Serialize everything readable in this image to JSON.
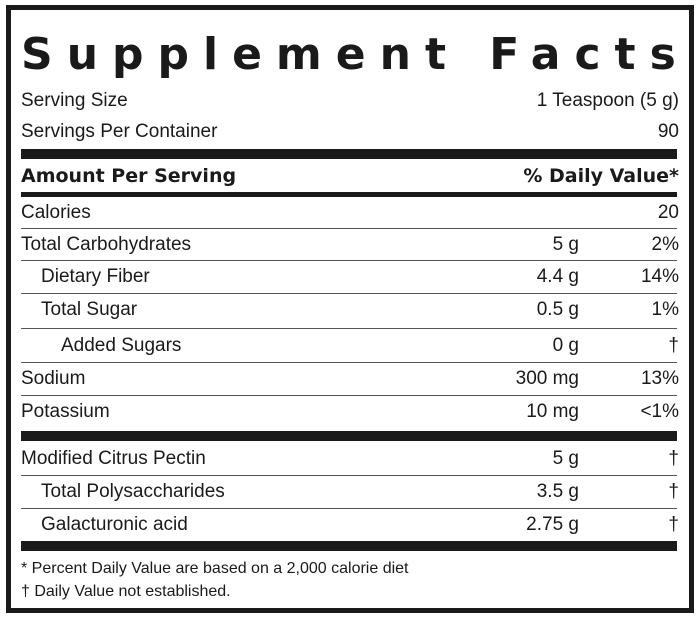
{
  "title": "Supplement Facts",
  "serving": {
    "size_label": "Serving Size",
    "size_value": "1 Teaspoon (5 g)",
    "per_container_label": "Servings Per Container",
    "per_container_value": "90"
  },
  "header": {
    "amount": "Amount Per Serving",
    "dv": "% Daily Value*"
  },
  "nutrients": [
    {
      "name": "Calories",
      "amount": "",
      "dv": "20"
    },
    {
      "name": "Total Carbohydrates",
      "amount": "5 g",
      "dv": "2%"
    },
    {
      "name": "Dietary Fiber",
      "amount": "4.4 g",
      "dv": "14%"
    },
    {
      "name": "Total Sugar",
      "amount": "0.5 g",
      "dv": "1%"
    },
    {
      "name": "Added Sugars",
      "amount": "0 g",
      "dv": "†"
    },
    {
      "name": "Sodium",
      "amount": "300 mg",
      "dv": "13%"
    },
    {
      "name": "Potassium",
      "amount": "10 mg",
      "dv": "<1%"
    }
  ],
  "ingredients": [
    {
      "name": "Modified Citrus Pectin",
      "amount": "5 g",
      "dv": "†"
    },
    {
      "name": "Total Polysaccharides",
      "amount": "3.5 g",
      "dv": "†"
    },
    {
      "name": "Galacturonic acid",
      "amount": "2.75 g",
      "dv": "†"
    }
  ],
  "footnotes": [
    "* Percent Daily Value are based on a 2,000 calorie diet",
    "† Daily Value not established."
  ]
}
